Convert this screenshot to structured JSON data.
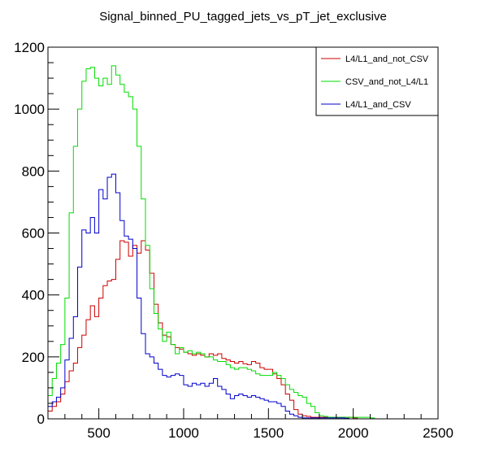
{
  "chart_data": {
    "type": "line",
    "title": "Signal_binned_PU_tagged_jets_vs_pT_jet_exclusive",
    "xlabel": "",
    "ylabel": "",
    "xlim": [
      200,
      2500
    ],
    "ylim": [
      0,
      1200
    ],
    "x_ticks": [
      500,
      1000,
      1500,
      2000,
      2500
    ],
    "y_ticks": [
      0,
      200,
      400,
      600,
      800,
      1000,
      1200
    ],
    "grid": false,
    "legend_position": "top-right",
    "bin_width": 25,
    "bin_start": 200,
    "series": [
      {
        "name": "L4/L1_and_not_CSV",
        "color": "#cc0000",
        "values": [
          25,
          40,
          55,
          80,
          120,
          155,
          180,
          230,
          270,
          320,
          365,
          330,
          390,
          430,
          445,
          450,
          515,
          575,
          570,
          525,
          560,
          535,
          575,
          545,
          470,
          370,
          310,
          270,
          265,
          240,
          230,
          225,
          215,
          210,
          205,
          210,
          205,
          200,
          210,
          205,
          210,
          195,
          190,
          185,
          180,
          185,
          178,
          175,
          185,
          180,
          165,
          160,
          160,
          145,
          130,
          110,
          80,
          60,
          30,
          15,
          10,
          8,
          5,
          5,
          5,
          5,
          5,
          5,
          5,
          5,
          5,
          5,
          3,
          0,
          0,
          0,
          0,
          0,
          0,
          0,
          0,
          0
        ]
      },
      {
        "name": "CSV_and_not_L4/L1",
        "color": "#00dd00",
        "values": [
          75,
          130,
          180,
          240,
          390,
          665,
          880,
          1000,
          1090,
          1130,
          1135,
          1100,
          1075,
          1100,
          1080,
          1140,
          1110,
          1080,
          1055,
          1040,
          1000,
          880,
          710,
          560,
          420,
          340,
          290,
          250,
          280,
          240,
          210,
          230,
          215,
          220,
          210,
          215,
          210,
          200,
          200,
          190,
          185,
          185,
          175,
          165,
          160,
          165,
          165,
          160,
          155,
          145,
          140,
          140,
          140,
          150,
          140,
          130,
          110,
          95,
          85,
          75,
          70,
          50,
          40,
          20,
          10,
          8,
          5,
          5,
          5,
          5,
          5,
          5,
          5,
          5,
          5,
          5,
          3,
          0,
          0,
          0,
          0,
          0
        ]
      },
      {
        "name": "L4/L1_and_CSV",
        "color": "#0000cc",
        "values": [
          40,
          55,
          70,
          100,
          190,
          260,
          330,
          490,
          610,
          600,
          650,
          600,
          740,
          710,
          780,
          790,
          730,
          640,
          590,
          580,
          550,
          390,
          275,
          210,
          200,
          180,
          160,
          140,
          135,
          140,
          145,
          140,
          110,
          105,
          115,
          110,
          115,
          105,
          115,
          130,
          105,
          95,
          80,
          65,
          75,
          80,
          75,
          70,
          75,
          70,
          65,
          60,
          55,
          55,
          50,
          40,
          25,
          15,
          10,
          5,
          3,
          3,
          3,
          3,
          3,
          3,
          3,
          3,
          3,
          3,
          2,
          0,
          0,
          0,
          0,
          0,
          0,
          0,
          0,
          0,
          0,
          0
        ]
      }
    ]
  }
}
